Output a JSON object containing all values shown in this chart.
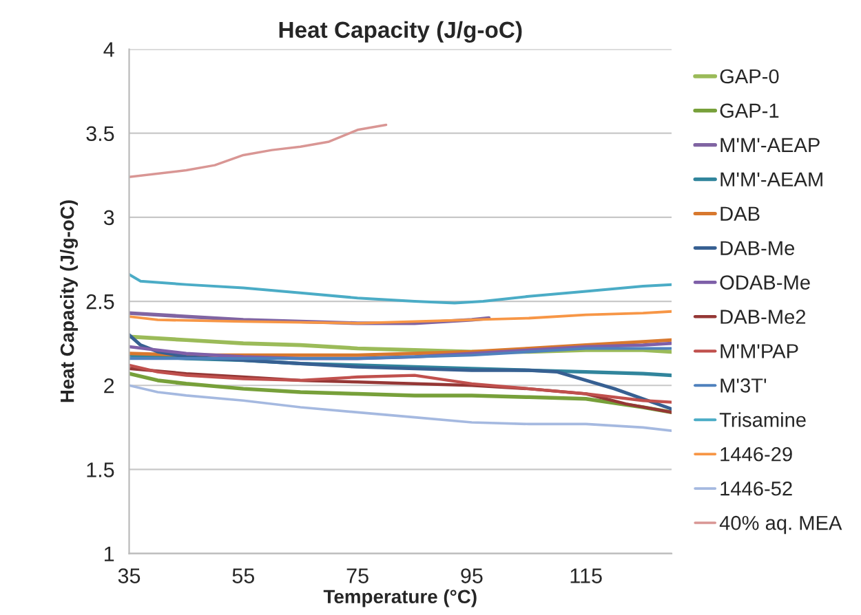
{
  "chart_data": {
    "type": "line",
    "title": "Heat Capacity (J/g-oC)",
    "xlabel": "Temperature (°C)",
    "ylabel": "Heat Capacity (J/g-oC)",
    "xlim": [
      35,
      130
    ],
    "xticks": [
      35,
      55,
      75,
      95,
      115
    ],
    "ylim": [
      1,
      4
    ],
    "yticks": [
      1,
      1.5,
      2,
      2.5,
      3,
      3.5,
      4
    ],
    "grid": "y",
    "legend": "right",
    "marker": "none",
    "line_style": "solid",
    "series": [
      {
        "name": "GAP-0",
        "color": "#9bbb59",
        "x": [
          35,
          45,
          55,
          65,
          75,
          85,
          95,
          105,
          115,
          125,
          130
        ],
        "values": [
          2.29,
          2.27,
          2.25,
          2.24,
          2.22,
          2.21,
          2.2,
          2.2,
          2.21,
          2.21,
          2.2
        ]
      },
      {
        "name": "GAP-1",
        "color": "#77a03a",
        "x": [
          35,
          40,
          45,
          55,
          65,
          75,
          85,
          95,
          105,
          115,
          125,
          130
        ],
        "values": [
          2.07,
          2.03,
          2.01,
          1.98,
          1.96,
          1.95,
          1.94,
          1.94,
          1.93,
          1.92,
          1.87,
          1.84
        ]
      },
      {
        "name": "M'M'-AEAP",
        "color": "#8064a2",
        "x": [
          35,
          45,
          55,
          65,
          75,
          85,
          90,
          95,
          98
        ],
        "values": [
          2.43,
          2.41,
          2.39,
          2.38,
          2.37,
          2.37,
          2.38,
          2.39,
          2.4
        ]
      },
      {
        "name": "M'M'-AEAM",
        "color": "#31859c",
        "x": [
          35,
          45,
          55,
          65,
          75,
          85,
          95,
          105,
          115,
          125,
          130
        ],
        "values": [
          2.18,
          2.16,
          2.15,
          2.13,
          2.12,
          2.11,
          2.1,
          2.09,
          2.08,
          2.07,
          2.06
        ]
      },
      {
        "name": "DAB",
        "color": "#d8782e",
        "x": [
          35,
          45,
          55,
          65,
          75,
          85,
          95,
          105,
          115,
          125,
          130
        ],
        "values": [
          2.19,
          2.18,
          2.18,
          2.18,
          2.18,
          2.19,
          2.2,
          2.22,
          2.24,
          2.26,
          2.27
        ]
      },
      {
        "name": "DAB-Me",
        "color": "#376092",
        "x": [
          35,
          37,
          40,
          45,
          55,
          65,
          75,
          85,
          95,
          105,
          110,
          120,
          130
        ],
        "values": [
          2.3,
          2.24,
          2.2,
          2.17,
          2.15,
          2.13,
          2.11,
          2.1,
          2.09,
          2.09,
          2.08,
          1.98,
          1.86
        ]
      },
      {
        "name": "ODAB-Me",
        "color": "#7e5fa8",
        "x": [
          35,
          45,
          55,
          65,
          75,
          85,
          95,
          105,
          115,
          125,
          130
        ],
        "values": [
          2.23,
          2.19,
          2.17,
          2.16,
          2.16,
          2.17,
          2.19,
          2.21,
          2.23,
          2.24,
          2.25
        ]
      },
      {
        "name": "DAB-Me2",
        "color": "#953735",
        "x": [
          35,
          45,
          55,
          65,
          75,
          85,
          95,
          105,
          115,
          122,
          130
        ],
        "values": [
          2.1,
          2.07,
          2.05,
          2.03,
          2.02,
          2.01,
          2.0,
          1.98,
          1.95,
          1.89,
          1.84
        ]
      },
      {
        "name": "M'M'PAP",
        "color": "#c0504d",
        "x": [
          35,
          40,
          45,
          55,
          65,
          75,
          85,
          95,
          105,
          115,
          125,
          130
        ],
        "values": [
          2.12,
          2.08,
          2.06,
          2.04,
          2.03,
          2.05,
          2.06,
          2.01,
          1.98,
          1.95,
          1.91,
          1.9
        ]
      },
      {
        "name": "M'3T'",
        "color": "#4f81bd",
        "x": [
          35,
          45,
          55,
          65,
          75,
          85,
          95,
          105,
          115,
          125,
          130
        ],
        "values": [
          2.16,
          2.16,
          2.16,
          2.16,
          2.16,
          2.17,
          2.18,
          2.2,
          2.22,
          2.22,
          2.22
        ]
      },
      {
        "name": "Trisamine",
        "color": "#4bacc6",
        "x": [
          35,
          37,
          45,
          55,
          65,
          75,
          85,
          92,
          97,
          105,
          115,
          125,
          130
        ],
        "values": [
          2.66,
          2.62,
          2.6,
          2.58,
          2.55,
          2.52,
          2.5,
          2.49,
          2.5,
          2.53,
          2.56,
          2.59,
          2.6
        ]
      },
      {
        "name": "1446-29",
        "color": "#f79646",
        "x": [
          35,
          40,
          55,
          75,
          85,
          95,
          105,
          115,
          125,
          130
        ],
        "values": [
          2.41,
          2.39,
          2.38,
          2.37,
          2.38,
          2.39,
          2.4,
          2.42,
          2.43,
          2.44
        ]
      },
      {
        "name": "1446-52",
        "color": "#a5b9e0",
        "x": [
          35,
          40,
          45,
          55,
          65,
          75,
          85,
          95,
          105,
          115,
          125,
          130
        ],
        "values": [
          2.0,
          1.96,
          1.94,
          1.91,
          1.87,
          1.84,
          1.81,
          1.78,
          1.77,
          1.77,
          1.75,
          1.73
        ]
      },
      {
        "name": "40% aq. MEA",
        "color": "#d99694",
        "x": [
          35,
          45,
          50,
          55,
          60,
          65,
          70,
          75,
          80
        ],
        "values": [
          3.24,
          3.28,
          3.31,
          3.37,
          3.4,
          3.42,
          3.45,
          3.52,
          3.55
        ]
      }
    ]
  }
}
